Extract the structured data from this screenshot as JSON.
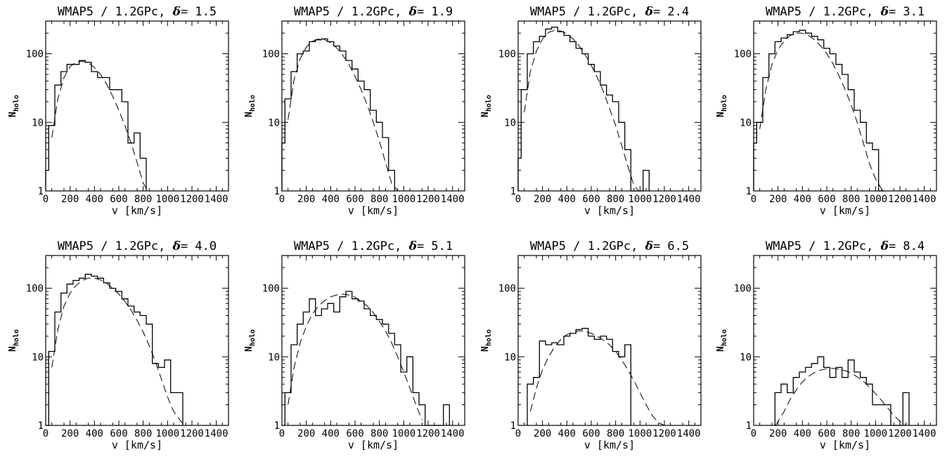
{
  "chart_data": [
    {
      "type": "line",
      "title_prefix": "WMAP5 / 1.2GPc, ",
      "delta_symbol": "δ",
      "delta_value": "= 1.5",
      "xlabel": "v [km/s]",
      "ylabel_main": "N",
      "ylabel_sub": "holo",
      "xlim": [
        0,
        1500
      ],
      "ylim": [
        1,
        300
      ],
      "yscale": "log",
      "xticks": [
        0,
        200,
        400,
        600,
        800,
        1000,
        1200,
        1400
      ],
      "xtick_labels": [
        "0",
        "200",
        "400",
        "600",
        "800",
        "1000",
        "1200",
        "1400"
      ],
      "yticks": [
        1,
        10,
        100
      ],
      "ytick_labels": [
        "1",
        "10",
        "100"
      ],
      "series": [
        {
          "style": "histogram",
          "bin_edges": [
            0,
            25,
            75,
            125,
            175,
            225,
            275,
            325,
            375,
            425,
            475,
            525,
            575,
            625,
            675,
            725,
            775,
            825
          ],
          "values": [
            2,
            9,
            35,
            55,
            70,
            70,
            80,
            75,
            55,
            45,
            45,
            30,
            30,
            20,
            5,
            7,
            3
          ]
        },
        {
          "style": "dashed",
          "x": [
            50,
            100,
            150,
            200,
            250,
            300,
            350,
            400,
            450,
            500,
            550,
            600,
            650,
            700,
            750,
            800,
            840
          ],
          "y": [
            6,
            22,
            45,
            65,
            76,
            78,
            74,
            63,
            50,
            36,
            24,
            15,
            9,
            5,
            2.6,
            1.3,
            1
          ]
        }
      ]
    },
    {
      "type": "line",
      "title_prefix": "WMAP5 / 1.2GPc, ",
      "delta_symbol": "δ",
      "delta_value": "= 1.9",
      "xlabel": "v [km/s]",
      "ylabel_main": "N",
      "ylabel_sub": "holo",
      "xlim": [
        0,
        1500
      ],
      "ylim": [
        1,
        300
      ],
      "yscale": "log",
      "xticks": [
        0,
        200,
        400,
        600,
        800,
        1000,
        1200,
        1400
      ],
      "xtick_labels": [
        "0",
        "200",
        "400",
        "600",
        "800",
        "1000",
        "1200",
        "1400"
      ],
      "yticks": [
        1,
        10,
        100
      ],
      "ytick_labels": [
        "1",
        "10",
        "100"
      ],
      "series": [
        {
          "style": "histogram",
          "bin_edges": [
            0,
            25,
            75,
            125,
            175,
            225,
            275,
            325,
            375,
            425,
            475,
            525,
            575,
            625,
            675,
            725,
            775,
            825,
            875,
            925
          ],
          "values": [
            5,
            22,
            55,
            100,
            110,
            150,
            160,
            165,
            150,
            130,
            110,
            80,
            60,
            40,
            30,
            15,
            10,
            6,
            2
          ]
        },
        {
          "style": "dashed",
          "x": [
            50,
            100,
            150,
            200,
            250,
            300,
            350,
            400,
            450,
            500,
            550,
            600,
            650,
            700,
            750,
            800,
            850,
            900,
            950
          ],
          "y": [
            11,
            42,
            85,
            125,
            152,
            164,
            160,
            145,
            122,
            95,
            70,
            47,
            30,
            18,
            10,
            5.3,
            2.6,
            1.3,
            1
          ]
        }
      ]
    },
    {
      "type": "line",
      "title_prefix": "WMAP5 / 1.2GPc, ",
      "delta_symbol": "δ",
      "delta_value": "= 2.4",
      "xlabel": "v [km/s]",
      "ylabel_main": "N",
      "ylabel_sub": "holo",
      "xlim": [
        0,
        1500
      ],
      "ylim": [
        1,
        300
      ],
      "yscale": "log",
      "xticks": [
        0,
        200,
        400,
        600,
        800,
        1000,
        1200,
        1400
      ],
      "xtick_labels": [
        "0",
        "200",
        "400",
        "600",
        "800",
        "1000",
        "1200",
        "1400"
      ],
      "yticks": [
        1,
        10,
        100
      ],
      "ytick_labels": [
        "1",
        "10",
        "100"
      ],
      "series": [
        {
          "style": "histogram",
          "bin_edges": [
            0,
            25,
            75,
            125,
            175,
            225,
            275,
            325,
            375,
            425,
            475,
            525,
            575,
            625,
            675,
            725,
            775,
            825,
            875,
            925,
            975,
            1025,
            1075
          ],
          "values": [
            3,
            30,
            100,
            150,
            180,
            230,
            245,
            210,
            185,
            150,
            120,
            100,
            70,
            55,
            35,
            25,
            20,
            10,
            4,
            1,
            0,
            2
          ]
        },
        {
          "style": "dashed",
          "x": [
            50,
            100,
            150,
            200,
            250,
            300,
            350,
            400,
            450,
            500,
            550,
            600,
            650,
            700,
            750,
            800,
            850,
            900,
            950,
            990
          ],
          "y": [
            14,
            55,
            110,
            165,
            205,
            220,
            215,
            195,
            165,
            130,
            97,
            68,
            45,
            28,
            16,
            9,
            4.6,
            2.3,
            1.2,
            1
          ]
        }
      ]
    },
    {
      "type": "line",
      "title_prefix": "WMAP5 / 1.2GPc, ",
      "delta_symbol": "δ",
      "delta_value": "= 3.1",
      "xlabel": "v [km/s]",
      "ylabel_main": "N",
      "ylabel_sub": "holo",
      "xlim": [
        0,
        1500
      ],
      "ylim": [
        1,
        300
      ],
      "yscale": "log",
      "xticks": [
        0,
        200,
        400,
        600,
        800,
        1000,
        1200,
        1400
      ],
      "xtick_labels": [
        "0",
        "200",
        "400",
        "600",
        "800",
        "1000",
        "1200",
        "1400"
      ],
      "yticks": [
        1,
        10,
        100
      ],
      "ytick_labels": [
        "1",
        "10",
        "100"
      ],
      "series": [
        {
          "style": "histogram",
          "bin_edges": [
            0,
            25,
            75,
            125,
            175,
            225,
            275,
            325,
            375,
            425,
            475,
            525,
            575,
            625,
            675,
            725,
            775,
            825,
            875,
            925,
            975,
            1025,
            1075
          ],
          "values": [
            5,
            10,
            45,
            100,
            150,
            170,
            190,
            210,
            220,
            200,
            180,
            160,
            120,
            100,
            70,
            50,
            30,
            15,
            10,
            5,
            4,
            1
          ]
        },
        {
          "style": "dashed",
          "x": [
            50,
            100,
            150,
            200,
            250,
            300,
            350,
            400,
            450,
            500,
            550,
            600,
            650,
            700,
            750,
            800,
            850,
            900,
            950,
            1000,
            1060
          ],
          "y": [
            8,
            30,
            70,
            115,
            155,
            185,
            200,
            200,
            185,
            160,
            130,
            100,
            72,
            48,
            30,
            18,
            10,
            5,
            2.5,
            1.5,
            1
          ]
        }
      ]
    },
    {
      "type": "line",
      "title_prefix": "WMAP5 / 1.2GPc, ",
      "delta_symbol": "δ",
      "delta_value": "= 4.0",
      "xlabel": "v [km/s]",
      "ylabel_main": "N",
      "ylabel_sub": "holo",
      "xlim": [
        0,
        1500
      ],
      "ylim": [
        1,
        300
      ],
      "yscale": "log",
      "xticks": [
        0,
        200,
        400,
        600,
        800,
        1000,
        1200,
        1400
      ],
      "xtick_labels": [
        "0",
        "200",
        "400",
        "600",
        "800",
        "1000",
        "1200",
        "1400"
      ],
      "yticks": [
        1,
        10,
        100
      ],
      "ytick_labels": [
        "1",
        "10",
        "100"
      ],
      "series": [
        {
          "style": "histogram",
          "bin_edges": [
            0,
            25,
            75,
            125,
            175,
            225,
            275,
            325,
            375,
            425,
            475,
            525,
            575,
            625,
            675,
            725,
            775,
            825,
            875,
            925,
            975,
            1025,
            1075,
            1125
          ],
          "values": [
            1,
            12,
            45,
            85,
            115,
            130,
            140,
            160,
            150,
            140,
            120,
            100,
            90,
            70,
            55,
            45,
            40,
            30,
            8,
            7,
            9,
            3,
            3
          ]
        },
        {
          "style": "dashed",
          "x": [
            50,
            100,
            150,
            200,
            250,
            300,
            350,
            400,
            450,
            500,
            550,
            600,
            650,
            700,
            750,
            800,
            850,
            900,
            950,
            1000,
            1050,
            1100,
            1140
          ],
          "y": [
            7,
            25,
            55,
            85,
            110,
            130,
            140,
            140,
            132,
            118,
            100,
            82,
            64,
            48,
            34,
            23,
            14.5,
            8.5,
            4.7,
            2.6,
            1.6,
            1.2,
            1
          ]
        }
      ]
    },
    {
      "type": "line",
      "title_prefix": "WMAP5 / 1.2GPc, ",
      "delta_symbol": "δ",
      "delta_value": "= 5.1",
      "xlabel": "v [km/s]",
      "ylabel_main": "N",
      "ylabel_sub": "holo",
      "xlim": [
        0,
        1500
      ],
      "ylim": [
        1,
        300
      ],
      "yscale": "log",
      "xticks": [
        0,
        200,
        400,
        600,
        800,
        1000,
        1200,
        1400
      ],
      "xtick_labels": [
        "0",
        "200",
        "400",
        "600",
        "800",
        "1000",
        "1200",
        "1400"
      ],
      "yticks": [
        1,
        10,
        100
      ],
      "ytick_labels": [
        "1",
        "10",
        "100"
      ],
      "series": [
        {
          "style": "histogram",
          "bin_edges": [
            0,
            25,
            75,
            125,
            175,
            225,
            275,
            325,
            375,
            425,
            475,
            525,
            575,
            625,
            675,
            725,
            775,
            825,
            875,
            925,
            975,
            1025,
            1075,
            1125,
            1175,
            1225,
            1275,
            1325,
            1375
          ],
          "values": [
            1,
            3,
            15,
            30,
            45,
            70,
            40,
            50,
            60,
            45,
            75,
            90,
            70,
            65,
            50,
            40,
            35,
            30,
            22,
            15,
            6,
            10,
            3,
            2,
            1,
            1,
            1,
            2
          ]
        },
        {
          "style": "dashed",
          "x": [
            50,
            100,
            150,
            200,
            250,
            300,
            350,
            400,
            450,
            500,
            550,
            600,
            650,
            700,
            750,
            800,
            850,
            900,
            950,
            1000,
            1050,
            1100,
            1150
          ],
          "y": [
            2,
            7,
            16,
            28,
            42,
            55,
            66,
            75,
            80,
            82,
            80,
            74,
            65,
            55,
            44,
            33,
            24,
            16,
            10,
            6,
            3.5,
            2,
            1.2
          ]
        }
      ]
    },
    {
      "type": "line",
      "title_prefix": "WMAP5 / 1.2GPc, ",
      "delta_symbol": "δ",
      "delta_value": "= 6.5",
      "xlabel": "v [km/s]",
      "ylabel_main": "N",
      "ylabel_sub": "holo",
      "xlim": [
        0,
        1500
      ],
      "ylim": [
        1,
        300
      ],
      "yscale": "log",
      "xticks": [
        0,
        200,
        400,
        600,
        800,
        1000,
        1200,
        1400
      ],
      "xtick_labels": [
        "0",
        "200",
        "400",
        "600",
        "800",
        "1000",
        "1200",
        "1400"
      ],
      "yticks": [
        1,
        10,
        100
      ],
      "ytick_labels": [
        "1",
        "10",
        "100"
      ],
      "series": [
        {
          "style": "histogram",
          "bin_edges": [
            75,
            125,
            175,
            225,
            275,
            325,
            375,
            425,
            475,
            525,
            575,
            625,
            675,
            725,
            775,
            825,
            875,
            925
          ],
          "values": [
            4,
            5,
            17,
            15,
            16,
            15,
            20,
            22,
            25,
            26,
            20,
            18,
            20,
            18,
            12,
            10,
            15
          ]
        },
        {
          "style": "dashed",
          "x": [
            100,
            150,
            200,
            250,
            300,
            350,
            400,
            450,
            500,
            550,
            600,
            650,
            700,
            750,
            800,
            850,
            900,
            950,
            1000,
            1050,
            1100,
            1150,
            1200
          ],
          "y": [
            1.6,
            3.5,
            6.5,
            10,
            14,
            18,
            21,
            23,
            24,
            23.5,
            22,
            20,
            17.5,
            15,
            12,
            9,
            6.5,
            4.5,
            3,
            2,
            1.4,
            1.1,
            1
          ]
        }
      ]
    },
    {
      "type": "line",
      "title_prefix": "WMAP5 / 1.2GPc, ",
      "delta_symbol": "δ",
      "delta_value": "= 8.4",
      "xlabel": "v [km/s]",
      "ylabel_main": "N",
      "ylabel_sub": "holo",
      "xlim": [
        0,
        1500
      ],
      "ylim": [
        1,
        300
      ],
      "yscale": "log",
      "xticks": [
        0,
        200,
        400,
        600,
        800,
        1000,
        1200,
        1400
      ],
      "xtick_labels": [
        "0",
        "200",
        "400",
        "600",
        "800",
        "1000",
        "1200",
        "1400"
      ],
      "yticks": [
        1,
        10,
        100
      ],
      "ytick_labels": [
        "1",
        "10",
        "100"
      ],
      "series": [
        {
          "style": "histogram",
          "bin_edges": [
            175,
            225,
            275,
            325,
            375,
            425,
            475,
            525,
            575,
            625,
            675,
            725,
            775,
            825,
            875,
            925,
            975,
            1025,
            1075,
            1125,
            1175,
            1225,
            1275
          ],
          "values": [
            3,
            4,
            3,
            5,
            6,
            7,
            8,
            10,
            7,
            5,
            7,
            5,
            9,
            6,
            5,
            4,
            2,
            2,
            2,
            1,
            1,
            3
          ]
        },
        {
          "style": "dashed",
          "x": [
            180,
            250,
            300,
            350,
            400,
            450,
            500,
            550,
            600,
            650,
            700,
            750,
            800,
            850,
            900,
            950,
            1000,
            1050,
            1100,
            1150,
            1200,
            1250
          ],
          "y": [
            1,
            1.6,
            2.4,
            3.3,
            4.3,
            5.2,
            5.9,
            6.4,
            6.7,
            6.8,
            6.6,
            6.3,
            5.8,
            5.1,
            4.4,
            3.6,
            2.9,
            2.3,
            1.8,
            1.4,
            1.15,
            1
          ]
        }
      ]
    }
  ]
}
